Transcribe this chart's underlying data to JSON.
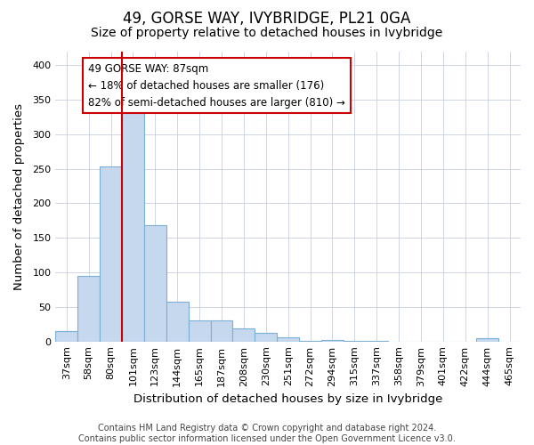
{
  "title": "49, GORSE WAY, IVYBRIDGE, PL21 0GA",
  "subtitle": "Size of property relative to detached houses in Ivybridge",
  "xlabel": "Distribution of detached houses by size in Ivybridge",
  "ylabel": "Number of detached properties",
  "categories": [
    "37sqm",
    "58sqm",
    "80sqm",
    "101sqm",
    "123sqm",
    "144sqm",
    "165sqm",
    "187sqm",
    "208sqm",
    "230sqm",
    "251sqm",
    "272sqm",
    "294sqm",
    "315sqm",
    "337sqm",
    "358sqm",
    "379sqm",
    "401sqm",
    "422sqm",
    "444sqm",
    "465sqm"
  ],
  "values": [
    15,
    95,
    253,
    333,
    168,
    57,
    30,
    30,
    19,
    12,
    6,
    1,
    2,
    1,
    1,
    0,
    0,
    0,
    0,
    5,
    0
  ],
  "bar_color": "#c5d8ee",
  "bar_edge_color": "#7bafd4",
  "property_line_bin_idx": 2,
  "annotation_text": "49 GORSE WAY: 87sqm\n← 18% of detached houses are smaller (176)\n82% of semi-detached houses are larger (810) →",
  "annotation_box_facecolor": "#ffffff",
  "annotation_box_edgecolor": "#cc0000",
  "line_color": "#cc0000",
  "ylim": [
    0,
    420
  ],
  "yticks": [
    0,
    50,
    100,
    150,
    200,
    250,
    300,
    350,
    400
  ],
  "footer_line1": "Contains HM Land Registry data © Crown copyright and database right 2024.",
  "footer_line2": "Contains public sector information licensed under the Open Government Licence v3.0.",
  "background_color": "#ffffff",
  "grid_color": "#c8cfe0",
  "title_fontsize": 12,
  "subtitle_fontsize": 10,
  "axis_label_fontsize": 9.5,
  "tick_fontsize": 8,
  "annotation_fontsize": 8.5,
  "footer_fontsize": 7
}
